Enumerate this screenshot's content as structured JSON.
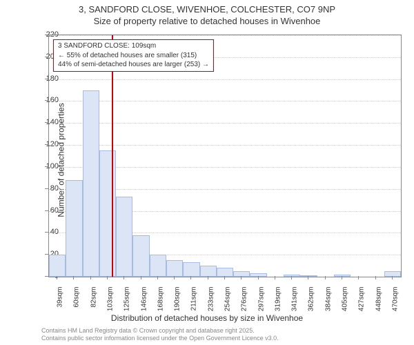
{
  "title": {
    "line1": "3, SANDFORD CLOSE, WIVENHOE, COLCHESTER, CO7 9NP",
    "line2": "Size of property relative to detached houses in Wivenhoe"
  },
  "chart": {
    "type": "histogram",
    "bar_fill": "#dbe5f6",
    "bar_border": "#a8bbe0",
    "reference_line_color": "#cc0000",
    "grid_color": "#cccccc",
    "axis_color": "#888888",
    "background_color": "#ffffff",
    "y_axis_title": "Number of detached properties",
    "x_axis_title": "Distribution of detached houses by size in Wivenhoe",
    "ylim": [
      0,
      220
    ],
    "y_ticks": [
      0,
      20,
      40,
      60,
      80,
      100,
      120,
      140,
      160,
      180,
      200,
      220
    ],
    "x_categories": [
      "39sqm",
      "60sqm",
      "82sqm",
      "103sqm",
      "125sqm",
      "146sqm",
      "168sqm",
      "190sqm",
      "211sqm",
      "233sqm",
      "254sqm",
      "276sqm",
      "297sqm",
      "319sqm",
      "341sqm",
      "362sqm",
      "384sqm",
      "405sqm",
      "427sqm",
      "448sqm",
      "470sqm"
    ],
    "values": [
      20,
      88,
      170,
      115,
      73,
      38,
      20,
      15,
      13,
      10,
      8,
      5,
      3,
      0,
      2,
      1,
      0,
      2,
      0,
      0,
      5
    ],
    "reference_value_sqm": 109,
    "annotation": {
      "line1": "3 SANDFORD CLOSE: 109sqm",
      "line2": "← 55% of detached houses are smaller (315)",
      "line3": "44% of semi-detached houses are larger (253) →"
    }
  },
  "footer": {
    "line1": "Contains HM Land Registry data © Crown copyright and database right 2025.",
    "line2": "Contains public sector information licensed under the Open Government Licence v3.0."
  }
}
